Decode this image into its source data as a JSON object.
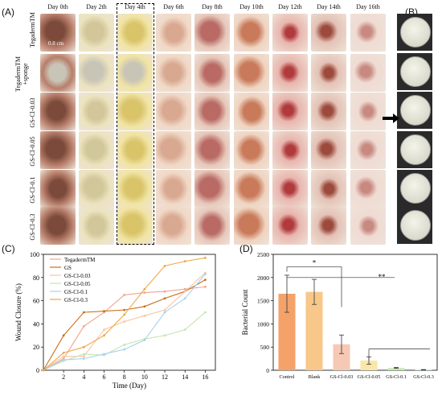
{
  "panels": {
    "a": "(A)",
    "b": "(B)",
    "c": "(C)",
    "d": "(D)"
  },
  "days": [
    "Day 0th",
    "Day 2th",
    "Day 4th",
    "Day 6th",
    "Day 8th",
    "Day 10th",
    "Day 12th",
    "Day 14th",
    "Day 16th"
  ],
  "groups": [
    "TegadermTM",
    "TegadermTM +sponge",
    "GS-Cl-0.03",
    "GS-Cl-0.05",
    "GS-Cl-0.1",
    "GS-Cl-0.3"
  ],
  "scale_bar": "0.8 cm",
  "chart_data": [
    {
      "type": "line",
      "xlabel": "Time (Day)",
      "ylabel": "Wound Closure (%)",
      "xlim": [
        0,
        17
      ],
      "ylim": [
        0,
        100
      ],
      "xticks": [
        2,
        4,
        6,
        8,
        10,
        12,
        14,
        16
      ],
      "yticks": [
        0,
        20,
        40,
        60,
        80,
        100
      ],
      "legend": "top-left",
      "x": [
        0,
        2,
        4,
        6,
        8,
        10,
        12,
        14,
        16
      ],
      "series": [
        {
          "name": "TegadermTM",
          "color": "#f2a58f",
          "values": [
            0,
            10,
            38,
            50,
            65,
            67,
            68,
            70,
            72
          ]
        },
        {
          "name": "GS",
          "color": "#c96f16",
          "values": [
            0,
            30,
            50,
            51,
            52,
            55,
            62,
            68,
            78
          ]
        },
        {
          "name": "GS-Cl-0.03",
          "color": "#f7c6a6",
          "values": [
            0,
            12,
            12,
            35,
            42,
            47,
            52,
            68,
            84
          ]
        },
        {
          "name": "GS-Cl-0.05",
          "color": "#c4e6b4",
          "values": [
            0,
            8,
            14,
            13,
            22,
            27,
            30,
            35,
            50
          ]
        },
        {
          "name": "GS-Cl-0.1",
          "color": "#a9d2ee",
          "values": [
            0,
            9,
            10,
            14,
            18,
            26,
            50,
            62,
            83
          ]
        },
        {
          "name": "GS-Cl-0.3",
          "color": "#f0a74a",
          "values": [
            0,
            15,
            20,
            30,
            48,
            70,
            90,
            94,
            97
          ]
        }
      ]
    },
    {
      "type": "bar",
      "ylabel": "Bacterial Count",
      "ylim": [
        0,
        2500
      ],
      "yticks": [
        0,
        500,
        1000,
        1500,
        2000,
        2500
      ],
      "categories": [
        "Control",
        "Blank",
        "GS-Cl-0.03",
        "GS-Cl-0.05",
        "GS-Cl-0.1",
        "GS-Cl-0.3"
      ],
      "values": [
        1650,
        1690,
        560,
        210,
        50,
        10
      ],
      "errors": [
        400,
        270,
        200,
        80,
        10,
        5
      ],
      "colors": [
        "#f5a26a",
        "#f7c88a",
        "#f6c9b5",
        "#fbe6a8",
        "#c7ecb2",
        "#9ef0d8"
      ],
      "significance": [
        "*",
        "**"
      ]
    }
  ]
}
